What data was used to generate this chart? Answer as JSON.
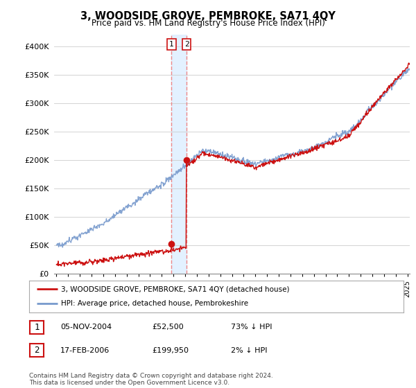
{
  "title": "3, WOODSIDE GROVE, PEMBROKE, SA71 4QY",
  "subtitle": "Price paid vs. HM Land Registry's House Price Index (HPI)",
  "ylabel_ticks": [
    "£0",
    "£50K",
    "£100K",
    "£150K",
    "£200K",
    "£250K",
    "£300K",
    "£350K",
    "£400K"
  ],
  "ytick_values": [
    0,
    50000,
    100000,
    150000,
    200000,
    250000,
    300000,
    350000,
    400000
  ],
  "ylim": [
    0,
    420000
  ],
  "xlim_start": 1994.8,
  "xlim_end": 2025.2,
  "sale1_x": 2004.84,
  "sale1_y": 52500,
  "sale2_x": 2006.12,
  "sale2_y": 199950,
  "hpi_color": "#7799cc",
  "price_color": "#cc1111",
  "shade_color": "#ddeeff",
  "dashed_color": "#ee8888",
  "legend_label_price": "3, WOODSIDE GROVE, PEMBROKE, SA71 4QY (detached house)",
  "legend_label_hpi": "HPI: Average price, detached house, Pembrokeshire",
  "table_rows": [
    {
      "num": "1",
      "date": "05-NOV-2004",
      "price": "£52,500",
      "rel": "73% ↓ HPI"
    },
    {
      "num": "2",
      "date": "17-FEB-2006",
      "price": "£199,950",
      "rel": "2% ↓ HPI"
    }
  ],
  "footnote": "Contains HM Land Registry data © Crown copyright and database right 2024.\nThis data is licensed under the Open Government Licence v3.0.",
  "background_color": "#ffffff",
  "grid_color": "#cccccc"
}
